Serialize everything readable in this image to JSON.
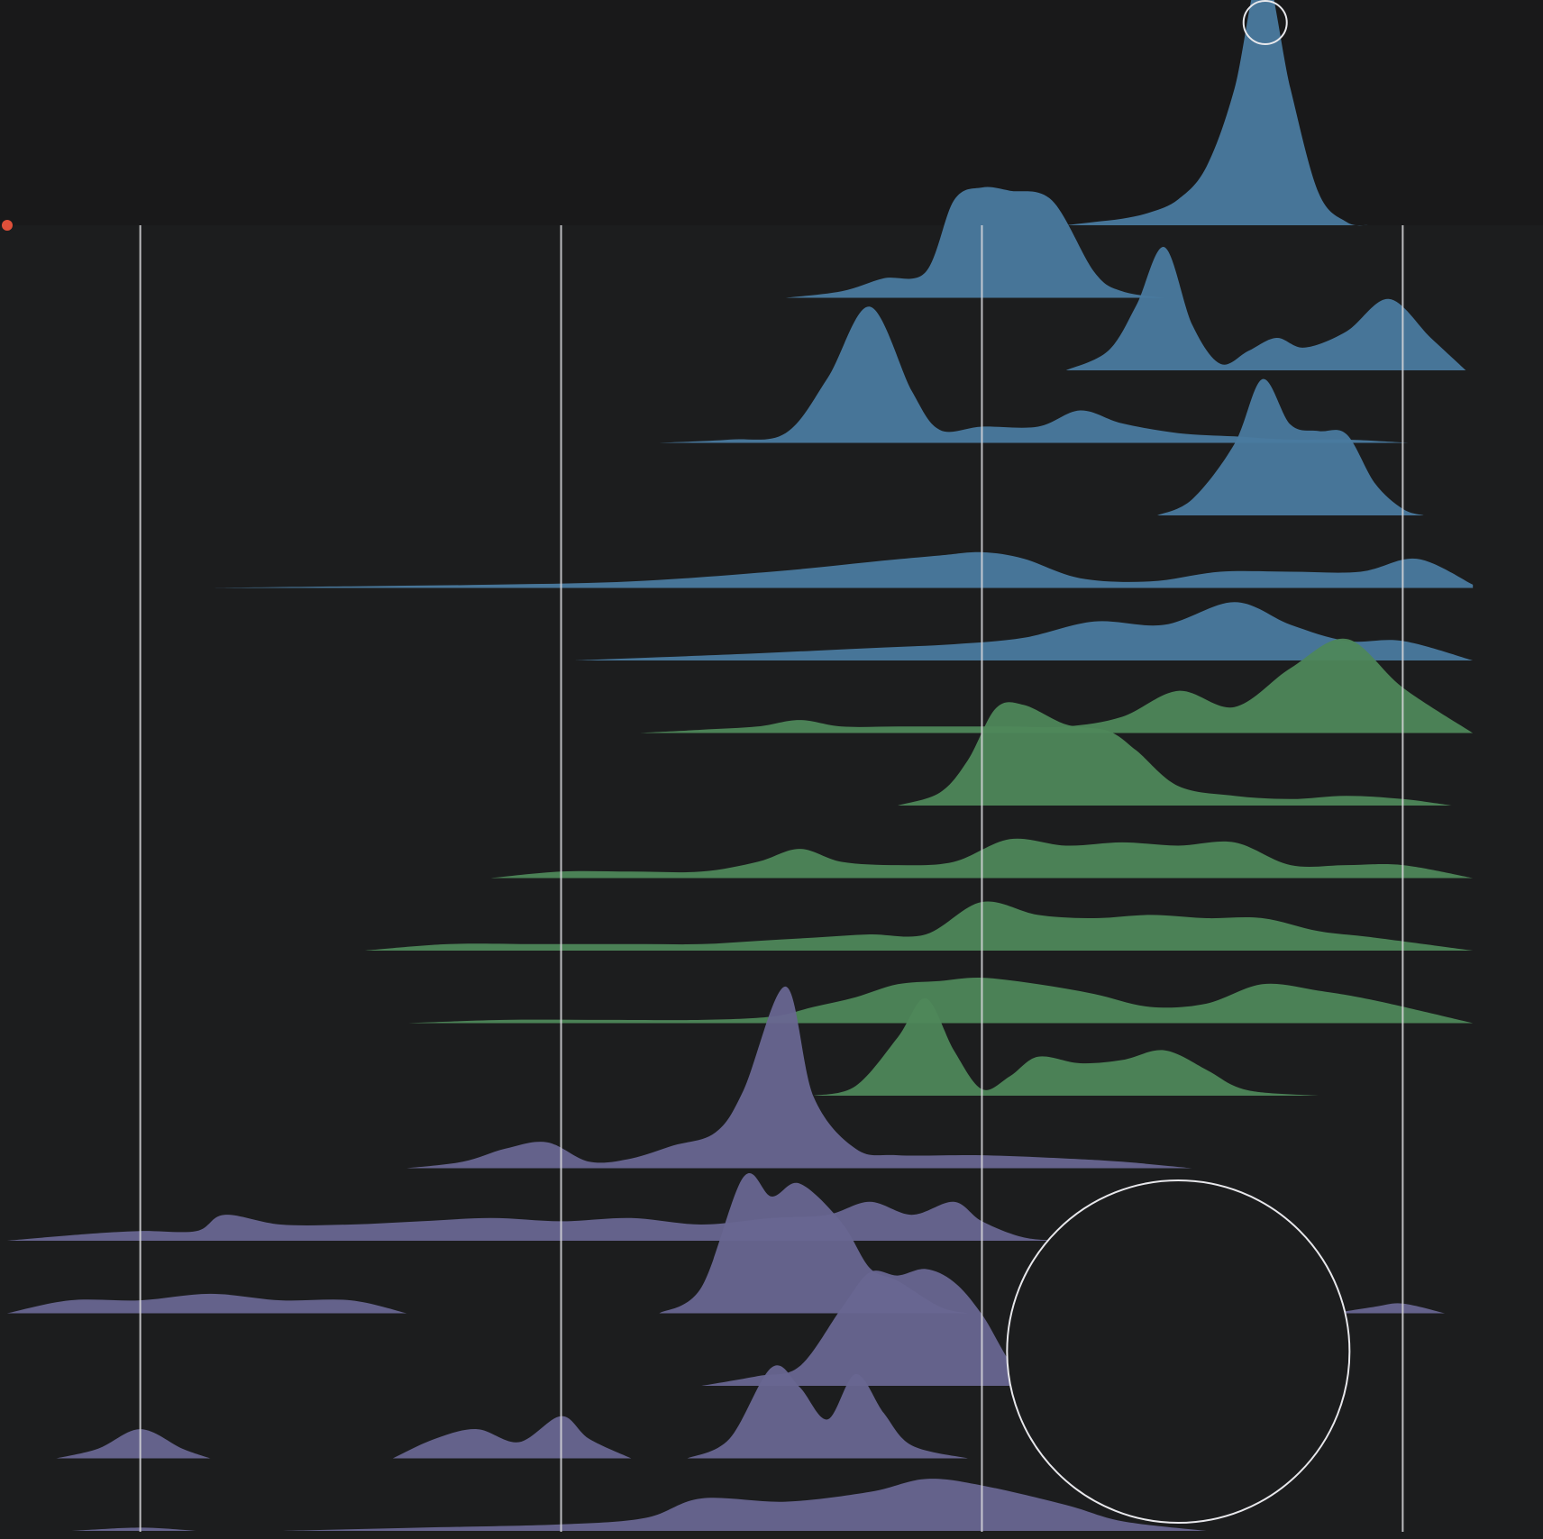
{
  "chart_data": {
    "type": "ridgeline",
    "title": "",
    "xlabel": "",
    "ylabel": "",
    "xlim": [
      0,
      1.1
    ],
    "reference_lines_x": [
      0.1,
      0.4,
      0.7,
      1.0
    ],
    "grid": false,
    "legend": "none",
    "colors": {
      "background": "#1c1d1e",
      "top_panel": "#19191a",
      "blue": "#4a7a9f",
      "green": "#4e875a",
      "purple": "#686691",
      "purple_highlight": "#7a76ad",
      "green_highlight": "#5a9a66",
      "reference_line": "#d8d8dc",
      "marker": "#e8e8ec",
      "dot": "#e0503a"
    },
    "annotations": [
      {
        "type": "circle-marker",
        "x": 0.9,
        "series_index": 0
      },
      {
        "type": "circle-marker-large",
        "x": 0.84,
        "series_index": 15
      },
      {
        "type": "dot",
        "x": 0.0,
        "series_index": 0
      }
    ],
    "series": [
      {
        "group": "blue",
        "x": [
          0.76,
          0.78,
          0.8,
          0.82,
          0.84,
          0.86,
          0.88,
          0.9,
          0.92,
          0.94,
          0.96,
          0.975
        ],
        "y": [
          0.0,
          0.01,
          0.02,
          0.04,
          0.08,
          0.18,
          0.42,
          0.8,
          0.42,
          0.1,
          0.01,
          0.0
        ]
      },
      {
        "group": "blue",
        "x": [
          0.56,
          0.6,
          0.63,
          0.66,
          0.68,
          0.7,
          0.72,
          0.75,
          0.78,
          0.8,
          0.83
        ],
        "y": [
          0.0,
          0.02,
          0.06,
          0.08,
          0.3,
          0.34,
          0.33,
          0.3,
          0.08,
          0.02,
          0.0
        ]
      },
      {
        "group": "blue",
        "x": [
          0.76,
          0.79,
          0.81,
          0.83,
          0.85,
          0.87,
          0.89,
          0.91,
          0.93,
          0.96,
          0.99,
          1.02,
          1.045
        ],
        "y": [
          0.0,
          0.06,
          0.2,
          0.38,
          0.14,
          0.02,
          0.06,
          0.1,
          0.07,
          0.12,
          0.22,
          0.1,
          0.0
        ]
      },
      {
        "group": "blue",
        "x": [
          0.47,
          0.52,
          0.56,
          0.59,
          0.62,
          0.65,
          0.67,
          0.7,
          0.74,
          0.77,
          0.8,
          0.84,
          0.88,
          0.92,
          0.96,
          1.005
        ],
        "y": [
          0.0,
          0.01,
          0.03,
          0.2,
          0.42,
          0.16,
          0.04,
          0.05,
          0.05,
          0.1,
          0.06,
          0.03,
          0.02,
          0.01,
          0.01,
          0.0
        ]
      },
      {
        "group": "blue",
        "x": [
          0.825,
          0.85,
          0.88,
          0.9,
          0.92,
          0.94,
          0.96,
          0.98,
          1.0,
          1.015
        ],
        "y": [
          0.0,
          0.05,
          0.22,
          0.42,
          0.28,
          0.26,
          0.25,
          0.1,
          0.02,
          0.0
        ]
      },
      {
        "group": "blue",
        "x": [
          0.15,
          0.25,
          0.35,
          0.45,
          0.55,
          0.62,
          0.67,
          0.7,
          0.73,
          0.77,
          0.82,
          0.87,
          0.92,
          0.97,
          1.01,
          1.05
        ],
        "y": [
          0.0,
          0.005,
          0.01,
          0.02,
          0.05,
          0.08,
          0.1,
          0.11,
          0.09,
          0.03,
          0.02,
          0.05,
          0.05,
          0.05,
          0.09,
          0.01
        ]
      },
      {
        "group": "blue",
        "x": [
          0.41,
          0.47,
          0.53,
          0.58,
          0.63,
          0.68,
          0.73,
          0.78,
          0.83,
          0.88,
          0.92,
          0.96,
          1.0,
          1.05
        ],
        "y": [
          0.0,
          0.01,
          0.02,
          0.03,
          0.04,
          0.05,
          0.07,
          0.12,
          0.11,
          0.18,
          0.11,
          0.06,
          0.06,
          0.0
        ]
      },
      {
        "group": "green",
        "x": [
          0.455,
          0.5,
          0.54,
          0.57,
          0.6,
          0.64,
          0.68,
          0.72,
          0.76,
          0.8,
          0.84,
          0.88,
          0.92,
          0.96,
          1.0,
          1.05
        ],
        "y": [
          0.0,
          0.01,
          0.02,
          0.04,
          0.02,
          0.02,
          0.02,
          0.02,
          0.02,
          0.05,
          0.13,
          0.08,
          0.2,
          0.29,
          0.14,
          0.0
        ]
      },
      {
        "group": "green",
        "x": [
          0.64,
          0.67,
          0.69,
          0.71,
          0.73,
          0.76,
          0.79,
          0.81,
          0.84,
          0.88,
          0.92,
          0.96,
          1.0,
          1.035
        ],
        "y": [
          0.0,
          0.04,
          0.14,
          0.3,
          0.31,
          0.25,
          0.23,
          0.17,
          0.06,
          0.03,
          0.02,
          0.03,
          0.02,
          0.0
        ]
      },
      {
        "group": "green",
        "x": [
          0.35,
          0.4,
          0.45,
          0.5,
          0.54,
          0.57,
          0.6,
          0.64,
          0.68,
          0.72,
          0.76,
          0.8,
          0.84,
          0.88,
          0.92,
          0.96,
          1.0,
          1.05
        ],
        "y": [
          0.0,
          0.02,
          0.02,
          0.02,
          0.05,
          0.09,
          0.05,
          0.04,
          0.05,
          0.12,
          0.1,
          0.11,
          0.1,
          0.11,
          0.04,
          0.04,
          0.04,
          0.0
        ]
      },
      {
        "group": "green",
        "x": [
          0.26,
          0.32,
          0.38,
          0.42,
          0.46,
          0.5,
          0.54,
          0.58,
          0.62,
          0.66,
          0.7,
          0.74,
          0.78,
          0.82,
          0.86,
          0.9,
          0.94,
          0.98,
          1.05
        ],
        "y": [
          0.0,
          0.02,
          0.02,
          0.02,
          0.02,
          0.02,
          0.03,
          0.04,
          0.05,
          0.05,
          0.15,
          0.11,
          0.1,
          0.11,
          0.1,
          0.1,
          0.06,
          0.04,
          0.0
        ]
      },
      {
        "group": "green",
        "x": [
          0.29,
          0.36,
          0.43,
          0.5,
          0.55,
          0.58,
          0.61,
          0.64,
          0.67,
          0.7,
          0.74,
          0.78,
          0.82,
          0.86,
          0.9,
          0.94,
          0.98,
          1.05
        ],
        "y": [
          0.0,
          0.01,
          0.01,
          0.01,
          0.02,
          0.05,
          0.08,
          0.12,
          0.13,
          0.14,
          0.12,
          0.09,
          0.05,
          0.06,
          0.12,
          0.1,
          0.07,
          0.0
        ]
      },
      {
        "group": "green",
        "x": [
          0.58,
          0.61,
          0.64,
          0.66,
          0.68,
          0.7,
          0.72,
          0.74,
          0.77,
          0.8,
          0.83,
          0.86,
          0.88,
          0.9,
          0.94
        ],
        "y": [
          0.0,
          0.03,
          0.18,
          0.3,
          0.14,
          0.02,
          0.06,
          0.12,
          0.1,
          0.11,
          0.14,
          0.08,
          0.03,
          0.01,
          0.0
        ]
      },
      {
        "group": "purple",
        "x": [
          0.29,
          0.33,
          0.36,
          0.39,
          0.42,
          0.45,
          0.48,
          0.51,
          0.53,
          0.56,
          0.58,
          0.61,
          0.64,
          0.7,
          0.76,
          0.8,
          0.85
        ],
        "y": [
          0.0,
          0.02,
          0.06,
          0.08,
          0.02,
          0.03,
          0.07,
          0.11,
          0.24,
          0.56,
          0.22,
          0.06,
          0.04,
          0.04,
          0.03,
          0.02,
          0.0
        ]
      },
      {
        "group": "purple",
        "x": [
          0.005,
          0.06,
          0.1,
          0.14,
          0.16,
          0.2,
          0.25,
          0.3,
          0.35,
          0.4,
          0.45,
          0.5,
          0.55,
          0.59,
          0.62,
          0.65,
          0.68,
          0.7,
          0.73,
          0.76
        ],
        "y": [
          0.0,
          0.02,
          0.03,
          0.03,
          0.08,
          0.05,
          0.05,
          0.06,
          0.07,
          0.06,
          0.07,
          0.05,
          0.07,
          0.08,
          0.12,
          0.08,
          0.12,
          0.06,
          0.01,
          0.0
        ]
      },
      {
        "group": "purple",
        "x": [
          0.005,
          0.05,
          0.1,
          0.15,
          0.2,
          0.25,
          0.29
        ],
        "y": [
          0.0,
          0.04,
          0.04,
          0.06,
          0.04,
          0.04,
          0.0
        ]
      },
      {
        "group": "purple",
        "x": [
          0.47,
          0.5,
          0.53,
          0.55,
          0.57,
          0.6,
          0.62,
          0.64,
          0.67,
          0.69
        ],
        "y": [
          0.0,
          0.08,
          0.42,
          0.36,
          0.4,
          0.28,
          0.14,
          0.1,
          0.02,
          0.0
        ]
      },
      {
        "group": "purple",
        "x": [
          0.95,
          0.98,
          1.0,
          1.03
        ],
        "y": [
          0.0,
          0.02,
          0.03,
          0.0
        ]
      },
      {
        "group": "purple",
        "x": [
          0.5,
          0.54,
          0.57,
          0.6,
          0.62,
          0.64,
          0.66,
          0.68,
          0.7,
          0.73,
          0.765
        ],
        "y": [
          0.0,
          0.03,
          0.06,
          0.24,
          0.35,
          0.34,
          0.36,
          0.32,
          0.22,
          0.02,
          0.0
        ]
      },
      {
        "group": "purple",
        "x": [
          0.04,
          0.07,
          0.1,
          0.13,
          0.15
        ],
        "y": [
          0.0,
          0.03,
          0.09,
          0.03,
          0.0
        ]
      },
      {
        "group": "purple",
        "x": [
          0.28,
          0.31,
          0.34,
          0.37,
          0.4,
          0.42,
          0.45
        ],
        "y": [
          0.0,
          0.06,
          0.09,
          0.05,
          0.13,
          0.06,
          0.0
        ]
      },
      {
        "group": "purple",
        "x": [
          0.49,
          0.52,
          0.55,
          0.57,
          0.59,
          0.61,
          0.63,
          0.65,
          0.69
        ],
        "y": [
          0.0,
          0.06,
          0.28,
          0.22,
          0.12,
          0.26,
          0.14,
          0.04,
          0.0
        ]
      },
      {
        "group": "purple",
        "x": [
          0.05,
          0.1,
          0.14
        ],
        "y": [
          0.0,
          0.01,
          0.0
        ]
      },
      {
        "group": "purple",
        "x": [
          0.2,
          0.3,
          0.4,
          0.46,
          0.5,
          0.56,
          0.62,
          0.66,
          0.7,
          0.76,
          0.8,
          0.86
        ],
        "y": [
          0.0,
          0.01,
          0.02,
          0.04,
          0.1,
          0.09,
          0.12,
          0.16,
          0.14,
          0.08,
          0.03,
          0.0
        ]
      }
    ],
    "row_index": [
      0,
      1,
      2,
      3,
      4,
      5,
      6,
      7,
      8,
      9,
      10,
      11,
      12,
      13,
      14,
      15,
      15,
      15,
      16,
      17,
      17,
      17,
      18,
      18
    ]
  }
}
